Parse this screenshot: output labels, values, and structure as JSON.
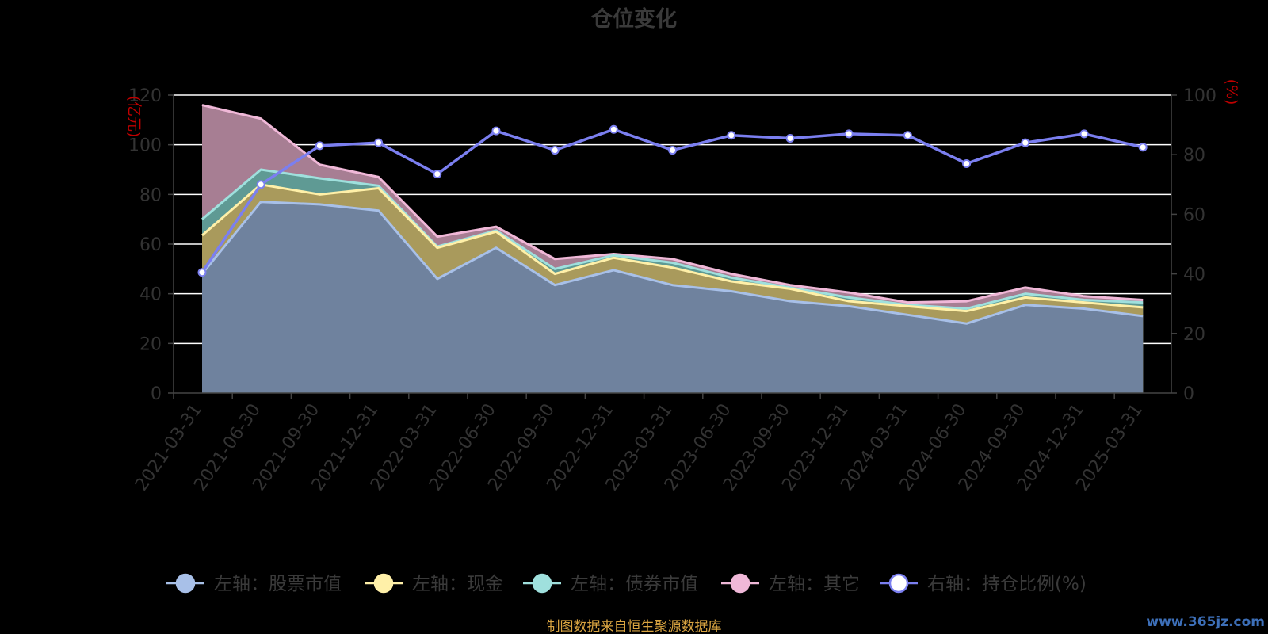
{
  "chart_data": {
    "type": "area",
    "title": "仓位变化",
    "left_axis_unit": "(亿元)",
    "right_axis_unit": "(%)",
    "left_ylim": [
      0,
      120
    ],
    "left_ticks": [
      0,
      20,
      40,
      60,
      80,
      100,
      120
    ],
    "right_ylim": [
      0,
      100
    ],
    "right_ticks": [
      0,
      20,
      40,
      60,
      80,
      100
    ],
    "grid": true,
    "legend_position": "bottom",
    "categories": [
      "2021-03-31",
      "2021-06-30",
      "2021-09-30",
      "2021-12-31",
      "2022-03-31",
      "2022-06-30",
      "2022-09-30",
      "2022-12-31",
      "2023-03-31",
      "2023-06-30",
      "2023-09-30",
      "2023-12-31",
      "2024-03-31",
      "2024-06-30",
      "2024-09-30",
      "2024-12-31",
      "2025-03-31"
    ],
    "series": [
      {
        "name": "左轴：股票市值",
        "axis": "left",
        "color": "#a8c0e8",
        "fill": "#6f829e",
        "values": [
          48,
          77,
          76,
          73.5,
          46,
          58.5,
          43.5,
          49.5,
          43.5,
          41,
          37,
          35,
          31.5,
          28,
          35.5,
          34,
          31
        ]
      },
      {
        "name": "左轴：现金",
        "axis": "left",
        "color": "#fff0a8",
        "fill": "#a99a5c",
        "values": [
          63.5,
          84,
          80,
          82.5,
          58.5,
          65,
          48,
          54.5,
          50.5,
          45,
          42,
          37,
          35,
          33,
          38.5,
          36.5,
          34.5
        ]
      },
      {
        "name": "左轴：债券市值",
        "axis": "left",
        "color": "#9fe0dd",
        "fill": "#5f9a94",
        "values": [
          70,
          90,
          86.5,
          83.5,
          59,
          65.5,
          50,
          55.5,
          52.5,
          46.5,
          42.5,
          38.5,
          35.5,
          34,
          40,
          37.5,
          36.5
        ]
      },
      {
        "name": "左轴：其它",
        "axis": "left",
        "color": "#f0b8d8",
        "fill": "#a77e93",
        "values": [
          116,
          110.5,
          92,
          87,
          63,
          67,
          54,
          56,
          54,
          48,
          43.5,
          40.5,
          36.5,
          37,
          42.5,
          39,
          37.5
        ]
      },
      {
        "name": "右轴：持仓比例(%)",
        "axis": "right",
        "color": "#7b7ff0",
        "values": [
          40.5,
          70,
          83,
          84,
          73.5,
          88,
          81.5,
          88.5,
          81.5,
          86.5,
          85.5,
          87,
          86.5,
          77,
          84,
          87,
          82.5
        ]
      }
    ],
    "source_note": "制图数据来自恒生聚源数据库",
    "watermark": "www.365jz.com"
  }
}
